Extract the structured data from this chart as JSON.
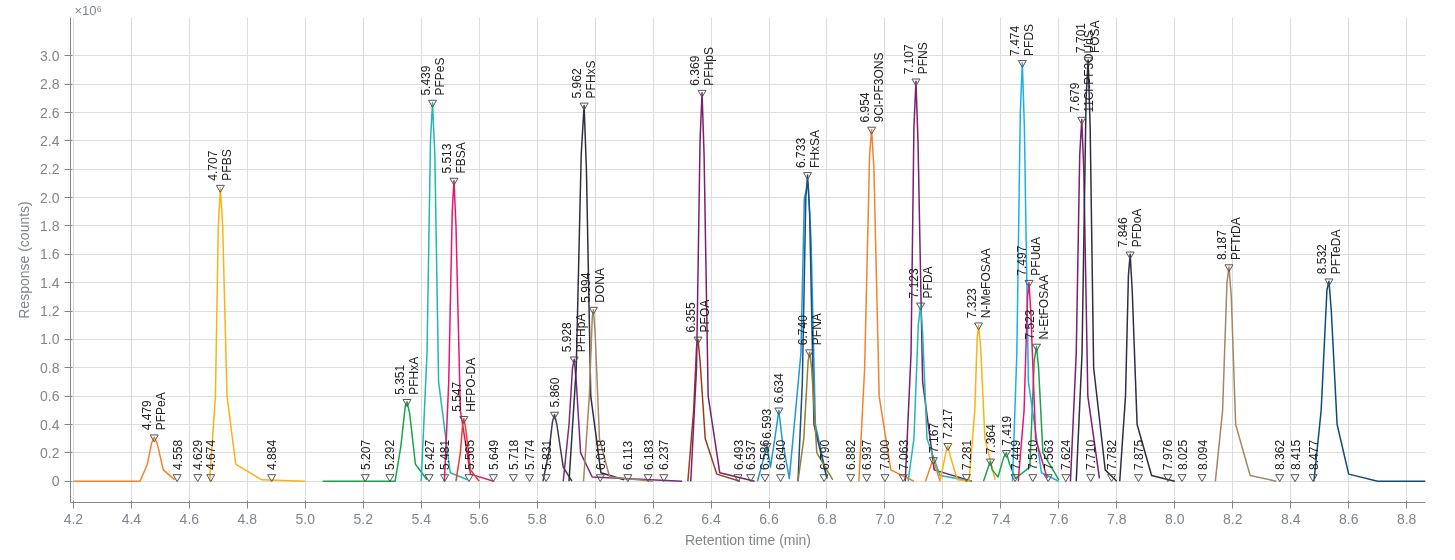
{
  "chart_data": {
    "type": "line",
    "xlabel": "Retention time (min)",
    "ylabel": "Response (counts)",
    "xlim": [
      4.19,
      8.865
    ],
    "ylim": [
      -0.15,
      3.27
    ],
    "xticks": [
      4.2,
      4.4,
      4.6,
      4.8,
      {
        "value": 5,
        "label": "5.0"
      },
      5.2,
      5.4,
      5.6,
      5.8,
      {
        "value": 6,
        "label": "6.0"
      },
      6.2,
      6.4,
      6.6,
      6.8,
      {
        "value": 7,
        "label": "7.0"
      },
      7.2,
      7.4,
      7.6,
      7.8,
      {
        "value": 8,
        "label": "8.0"
      },
      8.2,
      8.4,
      8.6,
      8.8
    ],
    "yticks": [
      0,
      0.2,
      0.4,
      0.6,
      0.8,
      {
        "value": 1,
        "label": "1.0"
      },
      1.2,
      1.4,
      1.6,
      1.8,
      {
        "value": 2,
        "label": "2.0"
      },
      2.2,
      2.4,
      2.6,
      2.8,
      {
        "value": 3,
        "label": "3.0"
      }
    ],
    "grid": true,
    "marker": "none",
    "line_style": "solid",
    "series": [
      {
        "color": "#f5822a",
        "x": [
          4.2,
          4.43,
          4.455,
          4.47,
          4.479,
          4.49,
          4.51,
          4.55
        ],
        "values": [
          0,
          0,
          0.12,
          0.27,
          0.31,
          0.26,
          0.08,
          0.01
        ]
      },
      {
        "color": "#fbb217",
        "x": [
          4.67,
          4.69,
          4.7,
          4.707,
          4.715,
          4.73,
          4.76,
          4.85,
          5.0
        ],
        "values": [
          0,
          0.6,
          1.8,
          2.07,
          1.8,
          0.6,
          0.12,
          0.01,
          0
        ]
      },
      {
        "color": "#1aa34a",
        "x": [
          5.06,
          5.31,
          5.33,
          5.345,
          5.351,
          5.36,
          5.38,
          5.42
        ],
        "values": [
          0,
          0,
          0.25,
          0.53,
          0.56,
          0.48,
          0.12,
          0.01
        ]
      },
      {
        "color": "#20b8b0",
        "x": [
          5.4,
          5.42,
          5.432,
          5.439,
          5.447,
          5.46,
          5.5,
          5.56
        ],
        "values": [
          0,
          0.9,
          2.4,
          2.67,
          2.3,
          0.7,
          0.06,
          0.01
        ]
      },
      {
        "color": "#e8166e",
        "x": [
          5.48,
          5.495,
          5.507,
          5.513,
          5.52,
          5.535,
          5.57,
          5.65
        ],
        "values": [
          0,
          0.7,
          1.9,
          2.12,
          1.8,
          0.5,
          0.05,
          0
        ]
      },
      {
        "color": "#f03c2c",
        "x": [
          5.52,
          5.535,
          5.543,
          5.547,
          5.553,
          5.57,
          5.6
        ],
        "values": [
          0,
          0.2,
          0.4,
          0.44,
          0.38,
          0.08,
          0
        ]
      },
      {
        "color": "#3c3c50",
        "x": [
          5.82,
          5.84,
          5.853,
          5.86,
          5.868,
          5.89,
          5.92
        ],
        "values": [
          0,
          0.2,
          0.42,
          0.47,
          0.4,
          0.1,
          0
        ]
      },
      {
        "color": "#7b2a7e",
        "x": [
          5.89,
          5.91,
          5.922,
          5.928,
          5.935,
          5.95,
          5.99,
          6.3
        ],
        "values": [
          0,
          0.4,
          0.8,
          0.86,
          0.7,
          0.2,
          0.03,
          0
        ]
      },
      {
        "color": "#2f2f40",
        "x": [
          5.91,
          5.935,
          5.952,
          5.962,
          5.97,
          5.985,
          6.02,
          6.1
        ],
        "values": [
          0,
          0.8,
          2.3,
          2.65,
          2.2,
          0.6,
          0.06,
          0.01
        ]
      },
      {
        "color": "#a58662",
        "x": [
          5.96,
          5.98,
          5.99,
          5.994,
          6.0,
          6.015,
          6.05,
          6.2
        ],
        "values": [
          0,
          0.6,
          1.15,
          1.21,
          1.05,
          0.3,
          0.03,
          0
        ]
      },
      {
        "color": "#a0381e",
        "x": [
          6.32,
          6.34,
          6.35,
          6.355,
          6.362,
          6.38,
          6.42,
          6.5
        ],
        "values": [
          0,
          0.5,
          0.95,
          1.0,
          0.85,
          0.3,
          0.05,
          0
        ]
      },
      {
        "color": "#7b1f6e",
        "x": [
          6.33,
          6.35,
          6.362,
          6.369,
          6.376,
          6.39,
          6.43,
          6.55
        ],
        "values": [
          0,
          0.8,
          2.4,
          2.74,
          2.3,
          0.6,
          0.06,
          0
        ]
      },
      {
        "color": "#1e9ad8",
        "x": [
          6.56,
          6.58,
          6.593,
          6.605,
          6.62,
          6.634,
          6.645,
          6.67,
          6.71,
          6.722,
          6.735,
          6.745,
          6.76,
          6.8
        ],
        "values": [
          0,
          0.15,
          0.25,
          0.1,
          0.3,
          0.5,
          0.3,
          0.02,
          0.9,
          2.0,
          2.1,
          1.7,
          0.4,
          0.02
        ]
      },
      {
        "color": "#1a4f80",
        "x": [
          6.7,
          6.715,
          6.727,
          6.733,
          6.74,
          6.755,
          6.8
        ],
        "values": [
          0,
          0.7,
          2.0,
          2.16,
          1.9,
          0.4,
          0.02
        ]
      },
      {
        "color": "#9c7c30",
        "x": [
          6.7,
          6.72,
          6.735,
          6.74,
          6.747,
          6.765,
          6.82
        ],
        "values": [
          0,
          0.3,
          0.85,
          0.91,
          0.8,
          0.2,
          0.01
        ]
      },
      {
        "color": "#f5822a",
        "x": [
          6.91,
          6.93,
          6.947,
          6.954,
          6.962,
          6.98,
          7.02,
          7.1
        ],
        "values": [
          0,
          0.8,
          2.3,
          2.48,
          2.2,
          0.6,
          0.08,
          0
        ]
      },
      {
        "color": "#7b1f6e",
        "x": [
          7.07,
          7.09,
          7.1,
          7.107,
          7.114,
          7.13,
          7.17,
          7.3
        ],
        "values": [
          0,
          0.9,
          2.5,
          2.82,
          2.4,
          0.7,
          0.08,
          0
        ]
      },
      {
        "color": "#20b8b0",
        "x": [
          7.08,
          7.1,
          7.115,
          7.123,
          7.13,
          7.145,
          7.19,
          7.3
        ],
        "values": [
          0,
          0.3,
          1.1,
          1.24,
          1.05,
          0.3,
          0.04,
          0
        ]
      },
      {
        "color": "#f5822a",
        "x": [
          7.14,
          7.16,
          7.167,
          7.175,
          7.19
        ],
        "values": [
          0,
          0.12,
          0.15,
          0.1,
          0
        ]
      },
      {
        "color": "#fbb217",
        "x": [
          7.19,
          7.21,
          7.217,
          7.225,
          7.25,
          7.29,
          7.31,
          7.318,
          7.323,
          7.33,
          7.345,
          7.38
        ],
        "values": [
          0,
          0.2,
          0.25,
          0.18,
          0.01,
          0,
          0.5,
          1.0,
          1.1,
          0.95,
          0.3,
          0.01
        ]
      },
      {
        "color": "#1aa34a",
        "x": [
          7.34,
          7.36,
          7.364,
          7.37,
          7.39,
          7.41,
          7.419,
          7.43,
          7.45,
          7.5,
          7.515,
          7.523,
          7.53,
          7.545,
          7.6
        ],
        "values": [
          0,
          0.12,
          0.14,
          0.08,
          0.03,
          0.17,
          0.2,
          0.12,
          0.02,
          0.1,
          0.85,
          0.95,
          0.8,
          0.2,
          0.01
        ]
      },
      {
        "color": "#1ab0e8",
        "x": [
          7.44,
          7.455,
          7.467,
          7.474,
          7.481,
          7.495,
          7.54,
          7.6
        ],
        "values": [
          0,
          0.9,
          2.6,
          2.95,
          2.5,
          0.7,
          0.06,
          0
        ]
      },
      {
        "color": "#e8166e",
        "x": [
          7.46,
          7.48,
          7.492,
          7.497,
          7.503,
          7.52,
          7.56
        ],
        "values": [
          0,
          0.5,
          1.3,
          1.4,
          1.2,
          0.3,
          0.02
        ]
      },
      {
        "color": "#7b1f6e",
        "x": [
          7.64,
          7.66,
          7.672,
          7.679,
          7.686,
          7.7,
          7.74
        ],
        "values": [
          0,
          0.9,
          2.3,
          2.55,
          2.2,
          0.6,
          0.02
        ]
      },
      {
        "color": "#2f2f40",
        "x": [
          7.66,
          7.68,
          7.694,
          7.701,
          7.708,
          7.72,
          7.76,
          7.8
        ],
        "values": [
          0,
          0.9,
          2.7,
          2.97,
          2.5,
          0.8,
          0.08,
          0
        ]
      },
      {
        "color": "#2f2f40",
        "x": [
          7.81,
          7.83,
          7.84,
          7.846,
          7.853,
          7.87,
          7.92,
          8.0
        ],
        "values": [
          0,
          0.6,
          1.45,
          1.6,
          1.35,
          0.4,
          0.04,
          0
        ]
      },
      {
        "color": "#a58662",
        "x": [
          8.14,
          8.165,
          8.18,
          8.187,
          8.195,
          8.21,
          8.26,
          8.35
        ],
        "values": [
          0,
          0.5,
          1.4,
          1.51,
          1.3,
          0.4,
          0.04,
          0
        ]
      },
      {
        "color": "#0e4d7a",
        "x": [
          8.48,
          8.505,
          8.525,
          8.532,
          8.54,
          8.56,
          8.6,
          8.7,
          8.865
        ],
        "values": [
          0,
          0.5,
          1.35,
          1.41,
          1.2,
          0.4,
          0.05,
          0,
          0
        ]
      }
    ],
    "annotations": [
      "×10⁶",
      {
        "text": "4.479\nPFPeA",
        "x": 4.479,
        "y": 0.31
      },
      {
        "text": "4.558",
        "x": 4.558,
        "y": 0.03
      },
      {
        "text": "4.629",
        "x": 4.629,
        "y": 0.03
      },
      {
        "text": "4.674",
        "x": 4.674,
        "y": 0.03
      },
      {
        "text": "4.707\nPFBS",
        "x": 4.707,
        "y": 2.07
      },
      {
        "text": "4.884",
        "x": 4.884,
        "y": 0.03
      },
      {
        "text": "5.207",
        "x": 5.207,
        "y": 0.03
      },
      {
        "text": "5.292",
        "x": 5.292,
        "y": 0.03
      },
      {
        "text": "5.351\nPFHxA",
        "x": 5.351,
        "y": 0.56
      },
      {
        "text": "5.427",
        "x": 5.427,
        "y": 0.03
      },
      {
        "text": "5.439\nPFPeS",
        "x": 5.439,
        "y": 2.67
      },
      {
        "text": "5.481",
        "x": 5.481,
        "y": 0.03
      },
      {
        "text": "5.513\nFBSA",
        "x": 5.513,
        "y": 2.12
      },
      {
        "text": "5.547\nHFPO-DA",
        "x": 5.547,
        "y": 0.44
      },
      {
        "text": "5.565",
        "x": 5.565,
        "y": 0.03
      },
      {
        "text": "5.649",
        "x": 5.649,
        "y": 0.03
      },
      {
        "text": "5.718",
        "x": 5.718,
        "y": 0.03
      },
      {
        "text": "5.774",
        "x": 5.774,
        "y": 0.03
      },
      {
        "text": "5.831",
        "x": 5.831,
        "y": 0.03
      },
      {
        "text": "5.860",
        "x": 5.86,
        "y": 0.47
      },
      {
        "text": "5.928\nPFHpA",
        "x": 5.928,
        "y": 0.86
      },
      {
        "text": "5.962\nPFHxS",
        "x": 5.962,
        "y": 2.65
      },
      {
        "text": "5.994\nDONA",
        "x": 5.994,
        "y": 1.21
      },
      {
        "text": "6.018",
        "x": 6.018,
        "y": 0.03
      },
      {
        "text": "6.113",
        "x": 6.113,
        "y": 0.03
      },
      {
        "text": "6.183",
        "x": 6.183,
        "y": 0.03
      },
      {
        "text": "6.237",
        "x": 6.237,
        "y": 0.03
      },
      {
        "text": "6.355\nPFOA",
        "x": 6.355,
        "y": 1.0
      },
      {
        "text": "6.369\nPFHpS",
        "x": 6.369,
        "y": 2.74
      },
      {
        "text": "6.493",
        "x": 6.493,
        "y": 0.03
      },
      {
        "text": "6.537",
        "x": 6.537,
        "y": 0.03
      },
      {
        "text": "6.586",
        "x": 6.586,
        "y": 0.03
      },
      {
        "text": "6.593",
        "x": 6.593,
        "y": 0.25
      },
      {
        "text": "6.634",
        "x": 6.634,
        "y": 0.5
      },
      {
        "text": "6.640",
        "x": 6.64,
        "y": 0.03
      },
      {
        "text": "6.733\nFHxSA",
        "x": 6.733,
        "y": 2.16
      },
      {
        "text": "6.740\nPFNA",
        "x": 6.74,
        "y": 0.91
      },
      {
        "text": "6.790",
        "x": 6.79,
        "y": 0.03
      },
      {
        "text": "6.882",
        "x": 6.882,
        "y": 0.03
      },
      {
        "text": "6.937",
        "x": 6.937,
        "y": 0.03
      },
      {
        "text": "6.954\n9Cl-PF3ONS",
        "x": 6.954,
        "y": 2.48
      },
      {
        "text": "7.000",
        "x": 7.0,
        "y": 0.03
      },
      {
        "text": "7.063",
        "x": 7.063,
        "y": 0.03
      },
      {
        "text": "7.107\nPFNS",
        "x": 7.107,
        "y": 2.82
      },
      {
        "text": "7.123\nPFDA",
        "x": 7.123,
        "y": 1.24
      },
      {
        "text": "7.167",
        "x": 7.167,
        "y": 0.15
      },
      {
        "text": "7.217",
        "x": 7.217,
        "y": 0.25
      },
      {
        "text": "7.281",
        "x": 7.281,
        "y": 0.03
      },
      {
        "text": "7.323\nN-MeFOSAA",
        "x": 7.323,
        "y": 1.1
      },
      {
        "text": "7.364",
        "x": 7.364,
        "y": 0.14
      },
      {
        "text": "7.419",
        "x": 7.419,
        "y": 0.2
      },
      {
        "text": "7.449",
        "x": 7.449,
        "y": 0.03
      },
      {
        "text": "7.474\nPFDS",
        "x": 7.474,
        "y": 2.95
      },
      {
        "text": "7.497\nPFUdA",
        "x": 7.497,
        "y": 1.4
      },
      {
        "text": "7.510",
        "x": 7.51,
        "y": 0.03
      },
      {
        "text": "7.523\nN-EtFOSAA",
        "x": 7.523,
        "y": 0.95
      },
      {
        "text": "7.563",
        "x": 7.563,
        "y": 0.03
      },
      {
        "text": "7.624",
        "x": 7.624,
        "y": 0.03
      },
      {
        "text": "7.679\n11Cl-PF3OUdS",
        "x": 7.679,
        "y": 2.55
      },
      {
        "text": "7.701\nFOSA",
        "x": 7.701,
        "y": 2.97
      },
      {
        "text": "7.710",
        "x": 7.71,
        "y": 0.03
      },
      {
        "text": "7.782",
        "x": 7.782,
        "y": 0.03
      },
      {
        "text": "7.846\nPFDoA",
        "x": 7.846,
        "y": 1.6
      },
      {
        "text": "7.875",
        "x": 7.875,
        "y": 0.03
      },
      {
        "text": "7.976",
        "x": 7.976,
        "y": 0.03
      },
      {
        "text": "8.025",
        "x": 8.025,
        "y": 0.03
      },
      {
        "text": "8.094",
        "x": 8.094,
        "y": 0.03
      },
      {
        "text": "8.187\nPFTrDA",
        "x": 8.187,
        "y": 1.51
      },
      {
        "text": "8.362",
        "x": 8.362,
        "y": 0.03
      },
      {
        "text": "8.415",
        "x": 8.415,
        "y": 0.03
      },
      {
        "text": "8.477",
        "x": 8.477,
        "y": 0.03
      },
      {
        "text": "8.532\nPFTeDA",
        "x": 8.532,
        "y": 1.41
      }
    ]
  }
}
